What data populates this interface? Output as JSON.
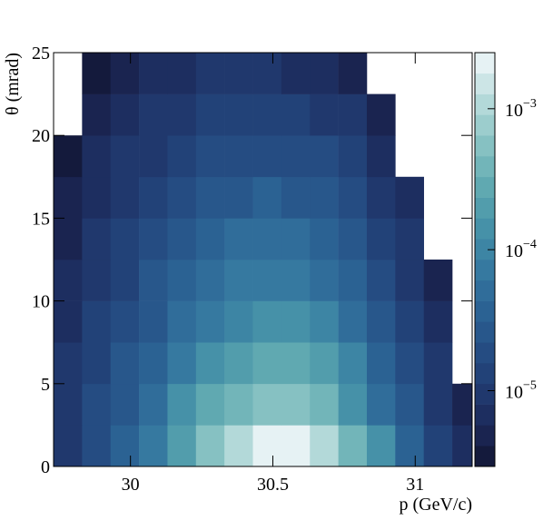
{
  "chart_data": {
    "type": "heatmap",
    "xlabel": "p (GeV/c)",
    "ylabel": "θ (mrad)",
    "xbins": [
      29.73,
      29.83,
      29.93,
      30.03,
      30.13,
      30.23,
      30.33,
      30.43,
      30.53,
      30.63,
      30.73,
      30.83,
      30.93,
      31.03,
      31.13,
      31.2
    ],
    "ybins": [
      0,
      2.5,
      5,
      7.5,
      10,
      12.5,
      15,
      17.5,
      20,
      22.5,
      25
    ],
    "z": [
      [
        1e-05,
        2e-05,
        4e-05,
        8e-05,
        0.0002,
        0.0005,
        0.0012,
        0.002,
        0.002,
        0.0012,
        0.0004,
        0.00012,
        4e-05,
        1.5e-05,
        6e-06
      ],
      [
        1e-05,
        2e-05,
        3e-05,
        6e-05,
        0.00012,
        0.00025,
        0.0004,
        0.0005,
        0.0005,
        0.00035,
        0.00015,
        6e-05,
        2.5e-05,
        1e-05,
        5e-06
      ],
      [
        8e-06,
        1.5e-05,
        2.5e-05,
        4e-05,
        7e-05,
        0.00012,
        0.0002,
        0.00025,
        0.00025,
        0.00018,
        9e-05,
        4e-05,
        1.8e-05,
        8e-06,
        null
      ],
      [
        7e-06,
        1.2e-05,
        2e-05,
        3e-05,
        5e-05,
        8e-05,
        0.00011,
        0.00013,
        0.00013,
        0.0001,
        6e-05,
        3e-05,
        1.3e-05,
        6e-06,
        null
      ],
      [
        6e-06,
        1e-05,
        1.5e-05,
        2.5e-05,
        3.5e-05,
        5e-05,
        7e-05,
        8e-05,
        8e-05,
        6e-05,
        4e-05,
        2e-05,
        1e-05,
        5e-06,
        null
      ],
      [
        5e-06,
        8e-06,
        1.2e-05,
        2e-05,
        2.8e-05,
        3.5e-05,
        4.5e-05,
        5e-05,
        5e-05,
        4e-05,
        2.8e-05,
        1.5e-05,
        8e-06,
        null,
        null
      ],
      [
        5e-06,
        7e-06,
        1e-05,
        1.5e-05,
        2e-05,
        2.5e-05,
        3e-05,
        3.2e-05,
        3e-05,
        2.5e-05,
        1.8e-05,
        1e-05,
        6e-06,
        null,
        null
      ],
      [
        4e-06,
        6e-06,
        8e-06,
        1.1e-05,
        1.5e-05,
        1.8e-05,
        2e-05,
        2e-05,
        2e-05,
        1.6e-05,
        1.2e-05,
        7e-06,
        null,
        null,
        null
      ],
      [
        null,
        5e-06,
        6e-06,
        8e-06,
        1e-05,
        1.2e-05,
        1.3e-05,
        1.3e-05,
        1.2e-05,
        1e-05,
        8e-06,
        5e-06,
        null,
        null,
        null
      ],
      [
        null,
        4e-06,
        5e-06,
        6e-06,
        7e-06,
        8e-06,
        8e-06,
        8e-06,
        7e-06,
        6e-06,
        5e-06,
        null,
        null,
        null,
        null
      ]
    ],
    "xlim": [
      29.73,
      31.2
    ],
    "xticks": [
      30,
      30.5,
      31
    ],
    "ylim": [
      0,
      25
    ],
    "yticks": [
      0,
      5,
      10,
      15,
      20,
      25
    ],
    "zlim": [
      2.9e-06,
      0.0025
    ],
    "zlog": true,
    "zticks": [
      {
        "value": 1e-05,
        "label": "10",
        "exponent": "−5"
      },
      {
        "value": 0.0001,
        "label": "10",
        "exponent": "−4"
      },
      {
        "value": 0.001,
        "label": "10",
        "exponent": "−3"
      }
    ],
    "palette": [
      "#141a3c",
      "#1a2450",
      "#1d2e60",
      "#20386d",
      "#224278",
      "#254c82",
      "#28578b",
      "#2b6293",
      "#306d9a",
      "#3679a0",
      "#3d85a4",
      "#4691a8",
      "#529dac",
      "#60a9b1",
      "#72b5b9",
      "#86c1c2",
      "#9ccdcd",
      "#b3d9d9",
      "#cce5e6",
      "#e6f2f4"
    ]
  }
}
